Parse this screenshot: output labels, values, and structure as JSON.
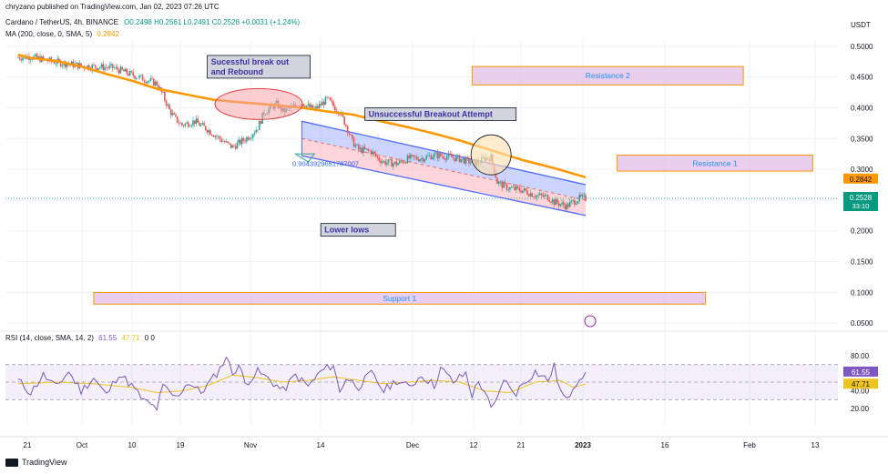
{
  "header": {
    "publisher": "chryzano published on TradingView.com, Jan 02, 2023 07:26 UTC",
    "symbol": "Cardano / TetherUS, 4h, BINANCE",
    "ohlc": "O0.2498 H0.2561 L0.2491 C0.2528 +0.0031 (+1.24%)",
    "ma_label": "MA (200, close, 0, SMA, 5)",
    "ma_value": "0.2842",
    "rsi_label": "RSI (14, close, SMA, 14, 2)",
    "rsi_value": "61.55",
    "rsi_ma_value": "47.71",
    "rsi_extra": "0 0"
  },
  "footer": {
    "brand": "TradingView"
  },
  "colors": {
    "up": "#26a69a",
    "down": "#ef5350",
    "ma": "#ff9800",
    "rsi": "#7e57c2",
    "rsi_ma": "#f0c420",
    "channel_blue": "#4f6bff",
    "zone_fill": "#e1bee7",
    "zone_border": "#ff9800",
    "zone_text": "#2196f3",
    "price_tag": "#089981"
  },
  "chart_data": [
    {
      "type": "candlestick",
      "title": "Cardano / TetherUS, 4h, BINANCE",
      "ylabel": "USDT",
      "ylim": [
        0.04,
        0.51
      ],
      "yticks": [
        0.05,
        0.1,
        0.15,
        0.2,
        0.25,
        0.3,
        0.35,
        0.4,
        0.45,
        0.5
      ],
      "ytick_labels": [
        "0.0500",
        "0.1000",
        "0.1500",
        "0.2000",
        "0.2500",
        "0.3000",
        "0.3500",
        "0.4000",
        "0.4500",
        "0.5000"
      ],
      "xtick_labels": [
        "21",
        "Oct",
        "10",
        "19",
        "Nov",
        "14",
        "Dec",
        "12",
        "21",
        "2023",
        "16",
        "Feb",
        "13"
      ],
      "price_series": {
        "name": "ADA/USDT close (approx)",
        "points": [
          [
            0,
            0.482
          ],
          [
            2,
            0.483
          ],
          [
            5,
            0.476
          ],
          [
            10,
            0.468
          ],
          [
            15,
            0.465
          ],
          [
            18,
            0.454
          ],
          [
            22,
            0.439
          ],
          [
            23,
            0.42
          ],
          [
            24,
            0.396
          ],
          [
            25,
            0.381
          ],
          [
            26,
            0.372
          ],
          [
            28,
            0.378
          ],
          [
            30,
            0.365
          ],
          [
            33,
            0.342
          ],
          [
            34,
            0.336
          ],
          [
            36,
            0.349
          ],
          [
            37,
            0.357
          ],
          [
            38,
            0.368
          ],
          [
            39,
            0.392
          ],
          [
            41,
            0.406
          ],
          [
            42,
            0.394
          ],
          [
            44,
            0.403
          ],
          [
            45,
            0.408
          ],
          [
            46,
            0.402
          ],
          [
            47,
            0.397
          ],
          [
            48,
            0.405
          ],
          [
            49,
            0.414
          ],
          [
            50,
            0.403
          ],
          [
            51,
            0.393
          ],
          [
            52,
            0.372
          ],
          [
            53,
            0.345
          ],
          [
            54,
            0.332
          ],
          [
            56,
            0.329
          ],
          [
            57,
            0.318
          ],
          [
            58,
            0.312
          ],
          [
            60,
            0.309
          ],
          [
            62,
            0.318
          ],
          [
            64,
            0.318
          ],
          [
            66,
            0.323
          ],
          [
            68,
            0.321
          ],
          [
            70,
            0.317
          ],
          [
            72,
            0.311
          ],
          [
            73,
            0.311
          ],
          [
            74,
            0.318
          ],
          [
            75,
            0.319
          ],
          [
            76,
            0.279
          ],
          [
            77,
            0.273
          ],
          [
            78,
            0.269
          ],
          [
            80,
            0.266
          ],
          [
            81,
            0.262
          ],
          [
            82,
            0.258
          ],
          [
            84,
            0.255
          ],
          [
            85,
            0.247
          ],
          [
            87,
            0.24
          ],
          [
            88,
            0.247
          ],
          [
            89,
            0.253
          ],
          [
            90,
            0.2528
          ]
        ]
      },
      "ma200": {
        "name": "MA (200, close, 0, SMA, 5)",
        "last": 0.2842,
        "points": [
          [
            0,
            0.486
          ],
          [
            2,
            0.481
          ],
          [
            6,
            0.476
          ],
          [
            10,
            0.467
          ],
          [
            14,
            0.455
          ],
          [
            18,
            0.444
          ],
          [
            22,
            0.431
          ],
          [
            27,
            0.421
          ],
          [
            31,
            0.413
          ],
          [
            35,
            0.409
          ],
          [
            40,
            0.405
          ],
          [
            45,
            0.4
          ],
          [
            49,
            0.394
          ],
          [
            53,
            0.389
          ],
          [
            58,
            0.377
          ],
          [
            62,
            0.368
          ],
          [
            66,
            0.358
          ],
          [
            70,
            0.347
          ],
          [
            75,
            0.331
          ],
          [
            80,
            0.315
          ],
          [
            85,
            0.302
          ],
          [
            90,
            0.287
          ]
        ]
      },
      "last_price": {
        "value": 0.2528,
        "label": "0.2528",
        "countdown": "33:10"
      },
      "ma_tag": {
        "value": 0.2842,
        "label": "0.2842"
      },
      "zones": [
        {
          "label": "Resistance 2",
          "x0": 72,
          "x1": 115,
          "y0": 0.437,
          "y1": 0.467
        },
        {
          "label": "Resistance 1",
          "x0": 95,
          "x1": 126,
          "y0": 0.297,
          "y1": 0.323
        },
        {
          "label": "Support 1",
          "x0": 12,
          "x1": 109,
          "y0": 0.081,
          "y1": 0.1
        }
      ],
      "annotations": [
        {
          "text": "Sucessful break out\nand Rebound",
          "x": 30,
          "y": 0.485
        },
        {
          "text": "Unsuccessful Breakout Attempt",
          "x": 55,
          "y": 0.4
        },
        {
          "text": "Lower lows",
          "x": 48,
          "y": 0.212
        }
      ],
      "channel": {
        "upper": [
          [
            45,
            0.378
          ],
          [
            90,
            0.275
          ]
        ],
        "lower": [
          [
            45,
            0.322
          ],
          [
            90,
            0.225
          ]
        ],
        "mid": [
          [
            45,
            0.35
          ],
          [
            90,
            0.25
          ]
        ]
      },
      "fib_text": "0.9043929651787007",
      "ellipse_rebound": {
        "x": 37,
        "y": 0.409
      },
      "circle_breakout": {
        "x": 75,
        "y": 0.325
      }
    },
    {
      "type": "line",
      "title": "RSI (14, close, SMA, 14, 2)",
      "ylim": [
        0,
        100
      ],
      "yticks": [
        20,
        40,
        60,
        80
      ],
      "ytick_labels": [
        "20.00",
        "40.00",
        "60.00",
        "80.00"
      ],
      "band": [
        30,
        70
      ],
      "midline": 50,
      "last_rsi": {
        "value": 61.55,
        "label": "61.55"
      },
      "last_rsi_ma": {
        "value": 47.71,
        "label": "47.71"
      },
      "series": [
        {
          "name": "RSI",
          "points": [
            [
              0,
              52
            ],
            [
              2,
              38
            ],
            [
              4,
              58
            ],
            [
              6,
              44
            ],
            [
              8,
              62
            ],
            [
              10,
              40
            ],
            [
              12,
              55
            ],
            [
              14,
              35
            ],
            [
              16,
              60
            ],
            [
              18,
              46
            ],
            [
              20,
              28
            ],
            [
              22,
              20
            ],
            [
              23,
              45
            ],
            [
              25,
              32
            ],
            [
              27,
              50
            ],
            [
              29,
              38
            ],
            [
              31,
              55
            ],
            [
              32,
              65
            ],
            [
              33,
              80
            ],
            [
              34,
              60
            ],
            [
              35,
              70
            ],
            [
              36,
              48
            ],
            [
              38,
              62
            ],
            [
              40,
              52
            ],
            [
              42,
              40
            ],
            [
              44,
              58
            ],
            [
              46,
              45
            ],
            [
              48,
              62
            ],
            [
              50,
              70
            ],
            [
              51,
              38
            ],
            [
              52,
              55
            ],
            [
              54,
              45
            ],
            [
              56,
              60
            ],
            [
              58,
              40
            ],
            [
              60,
              52
            ],
            [
              62,
              44
            ],
            [
              64,
              58
            ],
            [
              66,
              46
            ],
            [
              67,
              66
            ],
            [
              69,
              50
            ],
            [
              71,
              60
            ],
            [
              72,
              35
            ],
            [
              73,
              50
            ],
            [
              74,
              40
            ],
            [
              75,
              18
            ],
            [
              76,
              30
            ],
            [
              77,
              55
            ],
            [
              78,
              42
            ],
            [
              79,
              38
            ],
            [
              80,
              48
            ],
            [
              82,
              62
            ],
            [
              84,
              52
            ],
            [
              85,
              68
            ],
            [
              86,
              40
            ],
            [
              87,
              28
            ],
            [
              88,
              45
            ],
            [
              89,
              55
            ],
            [
              90,
              61.55
            ]
          ]
        },
        {
          "name": "RSI MA",
          "points": [
            [
              0,
              48
            ],
            [
              6,
              50
            ],
            [
              12,
              48
            ],
            [
              18,
              44
            ],
            [
              22,
              38
            ],
            [
              26,
              40
            ],
            [
              30,
              46
            ],
            [
              34,
              58
            ],
            [
              38,
              55
            ],
            [
              42,
              50
            ],
            [
              46,
              52
            ],
            [
              50,
              56
            ],
            [
              54,
              52
            ],
            [
              58,
              48
            ],
            [
              62,
              50
            ],
            [
              66,
              52
            ],
            [
              70,
              50
            ],
            [
              74,
              40
            ],
            [
              78,
              38
            ],
            [
              82,
              50
            ],
            [
              86,
              52
            ],
            [
              88,
              44
            ],
            [
              90,
              47.71
            ]
          ]
        }
      ]
    }
  ]
}
